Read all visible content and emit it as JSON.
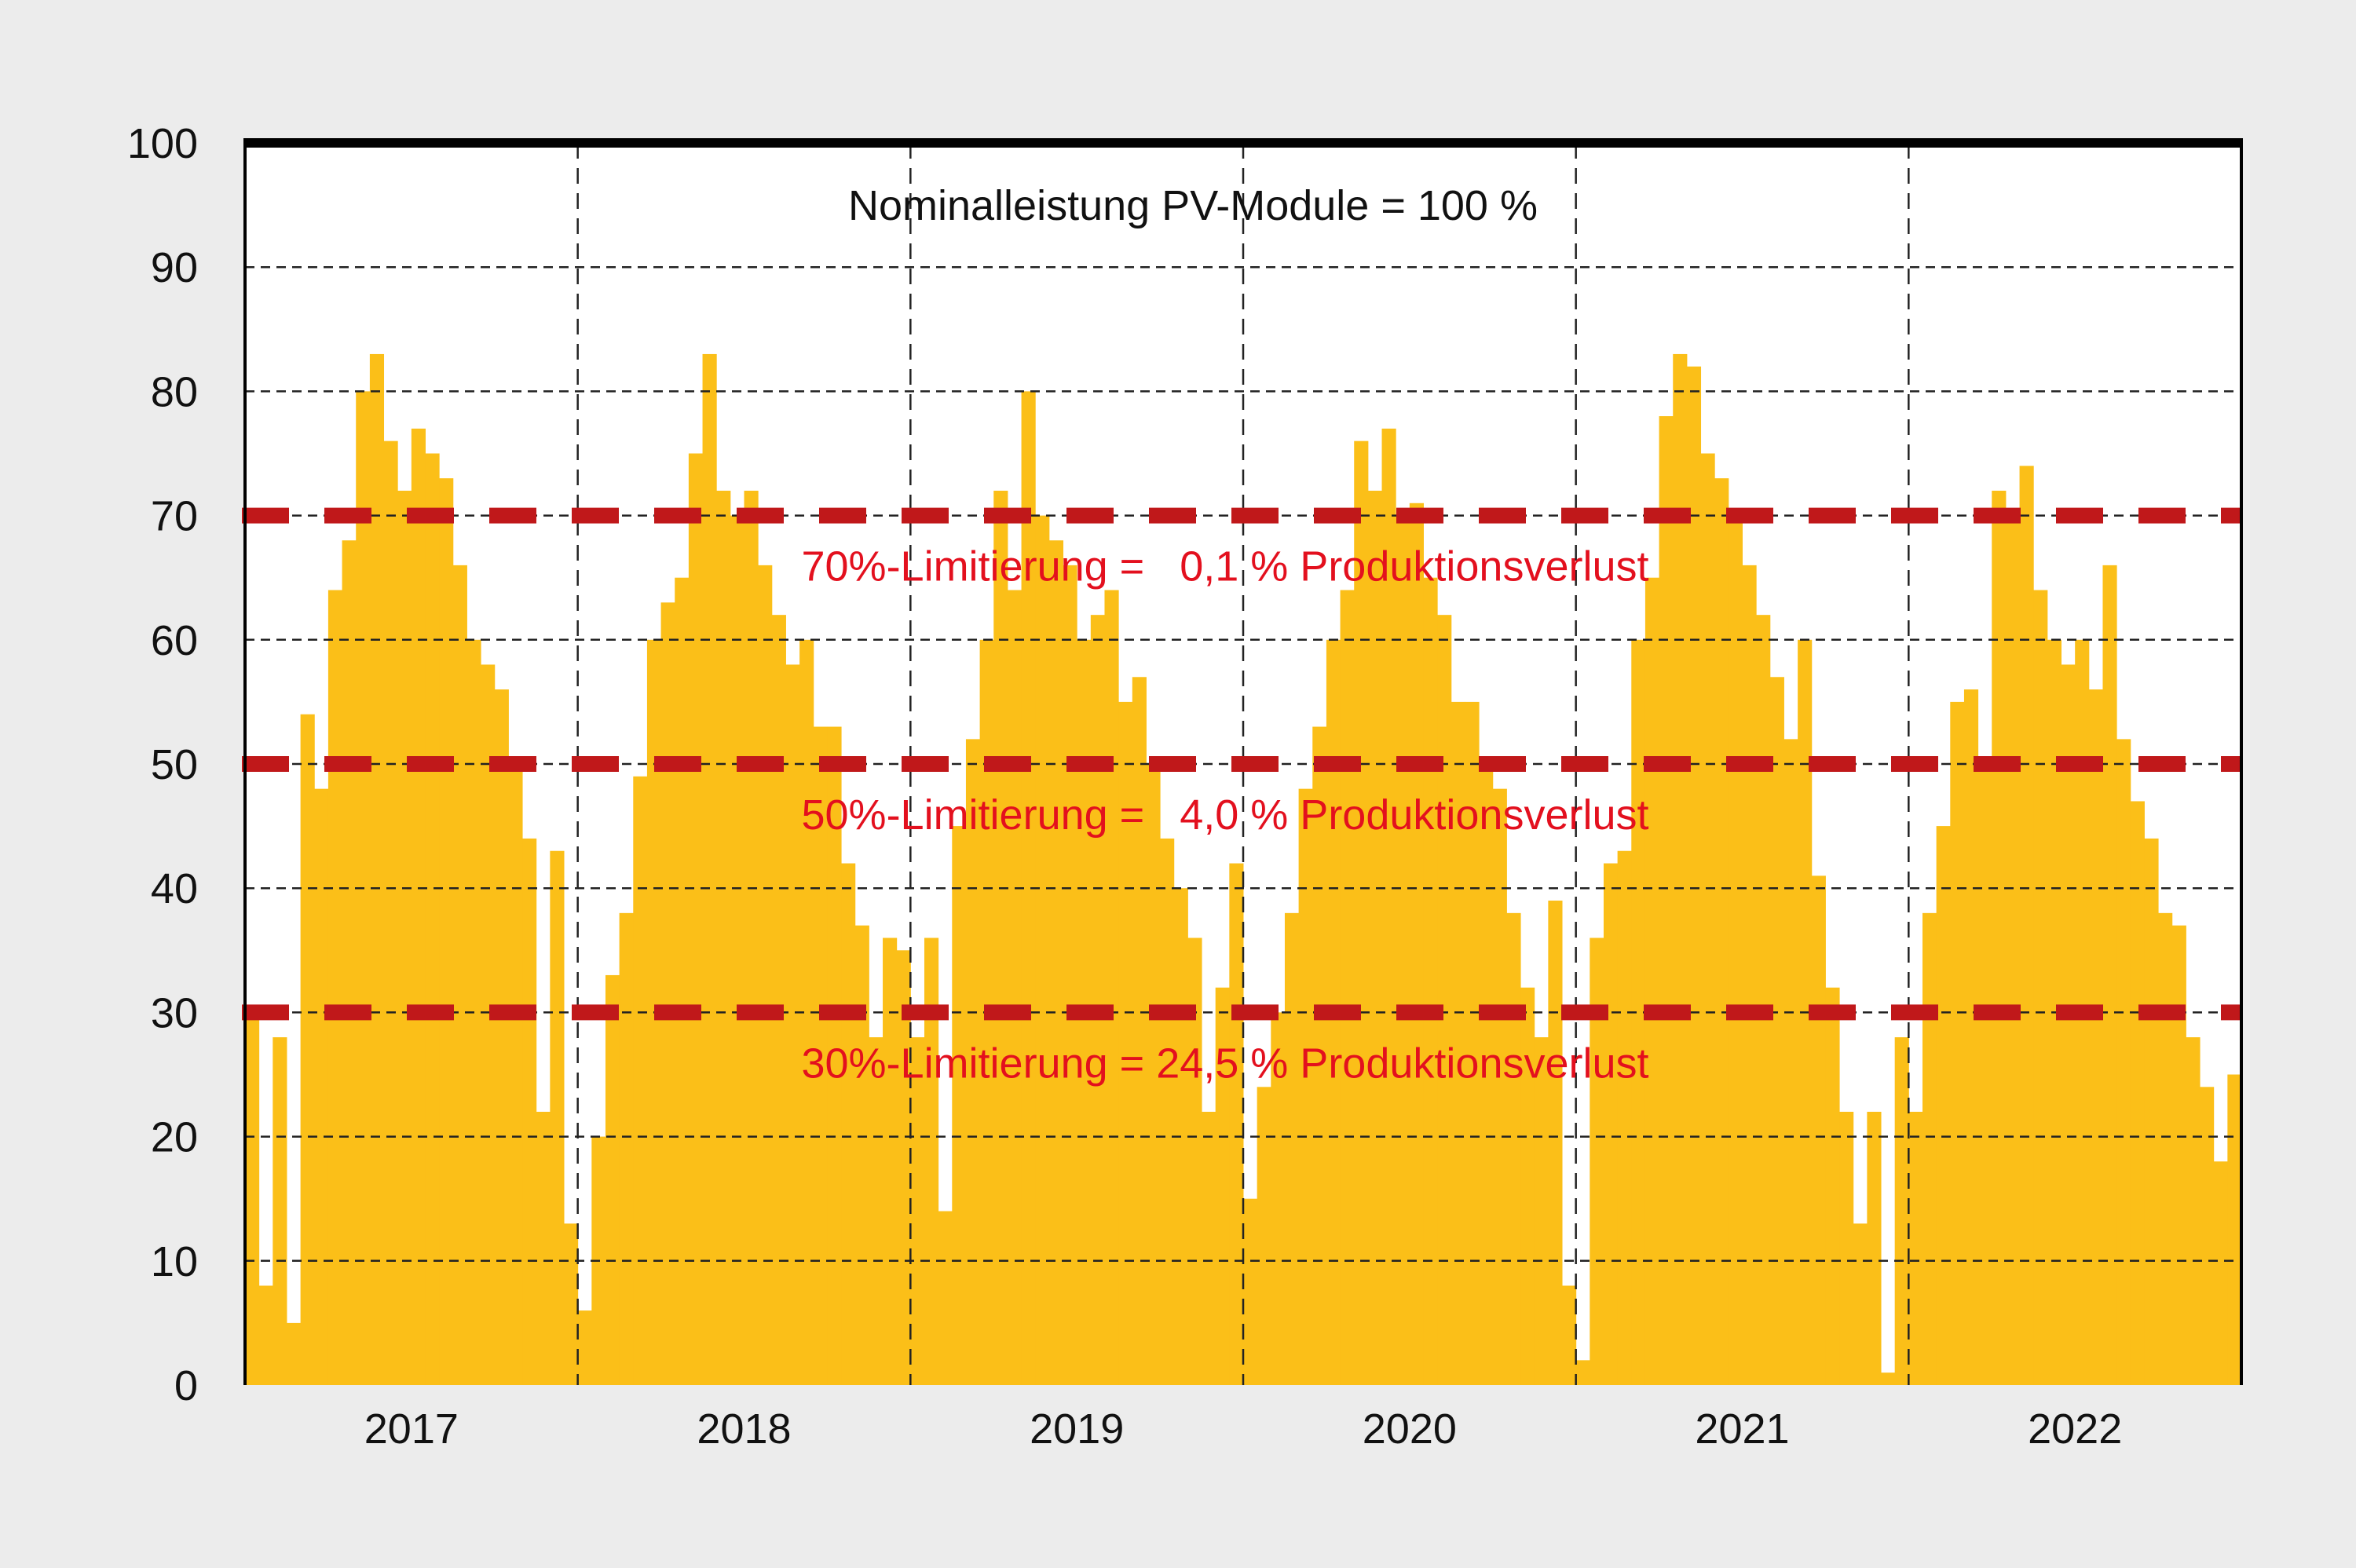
{
  "chart_data": {
    "type": "bar",
    "title": "Nominalleistung PV-Module = 100 %",
    "xlabel": "",
    "ylabel": "",
    "ylim": [
      0,
      100
    ],
    "yticks": [
      "0",
      "10",
      "20",
      "30",
      "40",
      "50",
      "60",
      "70",
      "80",
      "90",
      "100"
    ],
    "years": [
      "2017",
      "2018",
      "2019",
      "2020",
      "2021",
      "2022"
    ],
    "x_resolution": "half-monthly peak (24 per year)",
    "grid": true,
    "series": [
      {
        "name": "2017",
        "values": [
          30,
          8,
          28,
          5,
          54,
          48,
          64,
          68,
          80,
          83,
          76,
          72,
          77,
          75,
          73,
          66,
          60,
          58,
          56,
          50,
          44,
          22,
          43,
          13
        ]
      },
      {
        "name": "2018",
        "values": [
          6,
          20,
          33,
          38,
          49,
          60,
          63,
          65,
          75,
          83,
          72,
          70,
          72,
          66,
          62,
          58,
          60,
          53,
          53,
          42,
          37,
          28,
          36,
          35
        ]
      },
      {
        "name": "2019",
        "values": [
          28,
          36,
          14,
          45,
          52,
          60,
          72,
          64,
          80,
          70,
          68,
          66,
          60,
          62,
          64,
          55,
          57,
          50,
          44,
          40,
          36,
          22,
          32,
          42
        ]
      },
      {
        "name": "2020",
        "values": [
          15,
          24,
          30,
          38,
          48,
          53,
          60,
          64,
          76,
          72,
          77,
          70,
          71,
          65,
          62,
          55,
          55,
          50,
          48,
          38,
          32,
          28,
          39,
          8
        ]
      },
      {
        "name": "2021",
        "values": [
          2,
          36,
          42,
          43,
          60,
          65,
          78,
          83,
          82,
          75,
          73,
          70,
          66,
          62,
          57,
          52,
          60,
          41,
          32,
          22,
          13,
          22,
          1,
          28
        ]
      },
      {
        "name": "2022",
        "values": [
          22,
          38,
          45,
          55,
          56,
          50,
          72,
          70,
          74,
          64,
          60,
          58,
          60,
          56,
          66,
          52,
          47,
          44,
          38,
          37,
          28,
          24,
          18,
          25
        ]
      }
    ],
    "limits": [
      {
        "level": 70,
        "label": "70%-Limitierung =   0,1 % Produktionsverlust"
      },
      {
        "level": 50,
        "label": "50%-Limitierung =   4,0 % Produktionsverlust"
      },
      {
        "level": 30,
        "label": "30%-Limitierung = 24,5 % Produktionsverlust"
      }
    ],
    "colors": {
      "bars": "#fbbf18",
      "limit_lines": "#c0181a",
      "limit_text": "#e3101e",
      "background": "#ececec"
    }
  }
}
